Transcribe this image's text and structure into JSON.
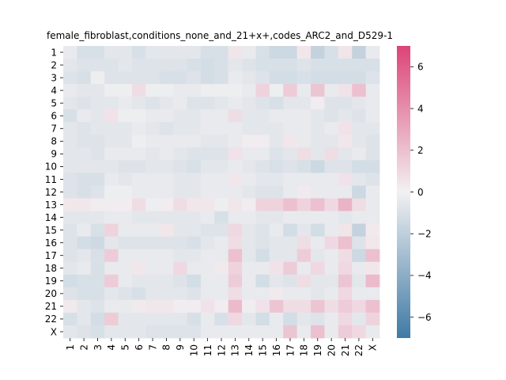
{
  "chart_data": {
    "type": "heatmap",
    "title": "female_fibroblast,conditions_none_and_21+x+,codes_ARC2_and_D529-1",
    "xlabel": "",
    "ylabel": "",
    "rows": [
      "1",
      "2",
      "3",
      "4",
      "5",
      "6",
      "7",
      "8",
      "9",
      "10",
      "11",
      "12",
      "13",
      "14",
      "15",
      "16",
      "17",
      "18",
      "19",
      "20",
      "21",
      "22",
      "X"
    ],
    "columns": [
      "1",
      "2",
      "3",
      "4",
      "5",
      "6",
      "7",
      "8",
      "9",
      "10",
      "11",
      "12",
      "13",
      "14",
      "15",
      "16",
      "17",
      "18",
      "19",
      "20",
      "21",
      "22",
      "X"
    ],
    "colorbar": {
      "min": -7,
      "max": 7,
      "ticks": [
        -6,
        -4,
        -2,
        0,
        2,
        4,
        6
      ]
    },
    "colors": {
      "low": "#3f7aa5",
      "mid": "#f2f1f2",
      "high": "#dc4478"
    },
    "values": [
      [
        -0.4,
        -1.0,
        -1.0,
        -0.6,
        -0.6,
        -1.0,
        -0.6,
        -0.6,
        -0.6,
        -0.6,
        -1.0,
        -1.0,
        0.5,
        -0.4,
        -1.0,
        -1.5,
        -1.5,
        0.4,
        -1.8,
        -1.0,
        0.5,
        -1.8,
        -0.4
      ],
      [
        -0.6,
        -0.8,
        -0.8,
        -0.8,
        -0.6,
        -0.8,
        -0.8,
        -0.8,
        -0.8,
        -1.0,
        -1.2,
        -1.0,
        -0.6,
        -0.8,
        -1.0,
        -1.0,
        -1.0,
        -0.8,
        -1.0,
        -1.0,
        -1.0,
        -1.0,
        -1.0
      ],
      [
        -0.8,
        -1.0,
        -0.2,
        -0.8,
        -0.8,
        -0.8,
        -0.8,
        -1.0,
        -1.0,
        -0.8,
        -1.2,
        -1.0,
        -0.4,
        -0.6,
        -0.8,
        -1.2,
        -1.2,
        -1.0,
        -1.2,
        -1.2,
        -1.2,
        -1.2,
        -0.8
      ],
      [
        -0.4,
        -0.6,
        -0.6,
        -0.2,
        -0.2,
        0.8,
        -0.2,
        -0.2,
        -0.4,
        -0.4,
        -0.2,
        -0.2,
        -0.2,
        -0.4,
        1.2,
        -0.2,
        1.5,
        -0.4,
        1.8,
        -0.4,
        0.6,
        2.0,
        -0.4
      ],
      [
        -0.6,
        -0.8,
        -0.6,
        -0.6,
        -0.4,
        -0.6,
        -0.8,
        -0.6,
        -0.4,
        -0.8,
        -0.8,
        -0.6,
        -0.4,
        -0.6,
        -0.8,
        -1.0,
        -0.6,
        -0.6,
        0.2,
        -0.8,
        -0.8,
        -0.6,
        -0.4
      ],
      [
        -1.0,
        -0.4,
        -0.6,
        0.6,
        -0.2,
        -0.2,
        -0.4,
        -0.4,
        -0.6,
        -0.6,
        -0.4,
        -0.4,
        0.8,
        -0.6,
        -0.6,
        -0.4,
        -0.4,
        -0.4,
        -0.6,
        -0.8,
        -0.6,
        -0.8,
        -0.4
      ],
      [
        -0.6,
        -0.8,
        -0.6,
        -0.6,
        -0.6,
        -0.4,
        -0.6,
        -0.8,
        -0.6,
        -0.6,
        -0.4,
        -0.4,
        -0.4,
        -0.6,
        -0.6,
        -0.6,
        -0.4,
        -0.4,
        -0.6,
        -0.4,
        0.6,
        -0.6,
        -0.6
      ],
      [
        -0.6,
        -0.8,
        -0.8,
        -0.6,
        -0.6,
        -0.2,
        -0.4,
        -0.4,
        -0.4,
        -0.4,
        -0.6,
        -0.6,
        -0.4,
        0.2,
        0.2,
        -0.6,
        0.4,
        -0.4,
        -0.6,
        -0.6,
        0.4,
        -0.6,
        -0.8
      ],
      [
        -0.6,
        -0.6,
        -0.8,
        -0.4,
        -0.4,
        -0.4,
        -0.6,
        -0.4,
        -0.6,
        -0.8,
        -0.8,
        -0.8,
        0.6,
        -0.4,
        -0.4,
        -0.8,
        -0.6,
        0.8,
        -0.6,
        0.8,
        -0.6,
        -0.4,
        -0.8
      ],
      [
        -0.6,
        -0.6,
        -0.6,
        -0.6,
        -0.8,
        -0.8,
        -0.6,
        -0.6,
        -0.8,
        -1.0,
        -0.6,
        -0.6,
        -0.4,
        -0.6,
        -0.8,
        -1.0,
        -0.8,
        -1.0,
        -1.5,
        -0.8,
        -0.8,
        -1.2,
        -1.2
      ],
      [
        -0.8,
        -1.0,
        -1.0,
        -0.4,
        -0.6,
        -0.4,
        -0.4,
        -0.4,
        -0.6,
        -0.6,
        -0.4,
        -0.4,
        0.4,
        -0.4,
        -0.6,
        -0.6,
        -0.4,
        -0.4,
        -0.4,
        -0.4,
        0.6,
        -0.6,
        -0.8
      ],
      [
        -0.8,
        -1.0,
        -0.8,
        -0.2,
        -0.2,
        -0.4,
        -0.4,
        -0.4,
        -0.6,
        -0.6,
        -0.4,
        -0.4,
        -0.4,
        -0.6,
        -0.8,
        -0.8,
        -0.4,
        0.3,
        -0.4,
        -0.4,
        -0.4,
        -1.5,
        -0.4
      ],
      [
        0.4,
        0.4,
        0.2,
        0.2,
        0.2,
        0.8,
        -0.2,
        0.2,
        0.8,
        0.4,
        0.4,
        -0.2,
        0.4,
        0.2,
        1.2,
        1.2,
        2.0,
        1.2,
        2.0,
        1.0,
        2.5,
        0.8,
        -0.4
      ],
      [
        -0.6,
        -0.6,
        -0.6,
        -0.4,
        -0.4,
        -0.6,
        -0.6,
        -0.6,
        -0.6,
        -0.6,
        -0.4,
        -1.0,
        -0.4,
        -0.4,
        -0.6,
        -0.6,
        -0.4,
        -0.4,
        -0.4,
        -0.4,
        -0.6,
        -0.4,
        -0.4
      ],
      [
        -0.8,
        -0.4,
        -1.0,
        1.2,
        -0.4,
        -0.4,
        -0.4,
        0.4,
        -0.6,
        -0.6,
        -0.8,
        -0.8,
        1.0,
        -0.6,
        -0.8,
        -0.4,
        -1.2,
        -0.6,
        -1.2,
        -0.4,
        0.5,
        -1.8,
        0.3
      ],
      [
        -0.8,
        -1.2,
        -1.4,
        -0.6,
        -0.8,
        -0.8,
        -0.8,
        -0.8,
        -0.8,
        -1.0,
        -0.6,
        -0.4,
        0.8,
        -0.6,
        -0.8,
        -0.6,
        -0.6,
        0.8,
        -0.4,
        1.0,
        2.0,
        -0.8,
        0.4
      ],
      [
        -0.8,
        -0.6,
        -1.0,
        1.5,
        -0.4,
        -0.4,
        -0.4,
        -0.4,
        -0.6,
        -0.6,
        -0.4,
        -0.4,
        2.0,
        -0.6,
        -1.2,
        -0.6,
        -0.6,
        1.5,
        -0.6,
        -0.4,
        0.8,
        -1.5,
        2.0
      ],
      [
        -0.6,
        -0.4,
        -1.0,
        -0.4,
        -0.4,
        0.4,
        -0.4,
        -0.4,
        1.0,
        -0.4,
        -0.4,
        0.3,
        1.2,
        -0.4,
        -0.4,
        0.6,
        1.5,
        -0.4,
        1.0,
        -0.4,
        1.0,
        -0.4,
        0.4
      ],
      [
        -1.2,
        -1.0,
        -1.0,
        1.5,
        -0.4,
        -0.6,
        -0.6,
        -0.6,
        -0.8,
        -1.2,
        -0.4,
        -0.4,
        1.5,
        -0.4,
        -1.2,
        -0.6,
        -0.8,
        0.8,
        -0.6,
        -0.6,
        1.8,
        -0.6,
        2.2
      ],
      [
        -0.8,
        -1.0,
        -1.0,
        -0.6,
        -0.8,
        -1.0,
        -0.6,
        -0.6,
        -0.6,
        -0.8,
        -0.4,
        -0.4,
        0.8,
        -0.4,
        -0.4,
        0.3,
        -0.4,
        -0.4,
        -0.6,
        -0.4,
        1.0,
        -0.4,
        -0.4
      ],
      [
        0.3,
        -0.6,
        -0.8,
        -0.4,
        -0.4,
        0.3,
        0.4,
        0.4,
        0.2,
        0.2,
        0.6,
        0.2,
        2.2,
        0.2,
        0.6,
        1.8,
        0.8,
        0.8,
        1.8,
        0.8,
        1.5,
        1.0,
        2.0
      ],
      [
        -1.0,
        -0.6,
        -1.2,
        1.5,
        -0.6,
        -0.6,
        -0.6,
        -0.6,
        -0.6,
        -1.0,
        -0.4,
        -1.0,
        1.0,
        -0.6,
        -1.2,
        -0.4,
        -1.2,
        -0.6,
        -0.8,
        -0.4,
        1.0,
        -0.6,
        1.2
      ],
      [
        -0.6,
        -0.8,
        -1.0,
        -0.6,
        -0.6,
        -0.6,
        -0.8,
        -0.8,
        -0.8,
        -0.8,
        -0.4,
        -0.4,
        -0.4,
        -0.4,
        -0.4,
        -0.4,
        1.8,
        -0.4,
        2.0,
        -0.4,
        1.5,
        1.0,
        -0.4
      ]
    ]
  }
}
